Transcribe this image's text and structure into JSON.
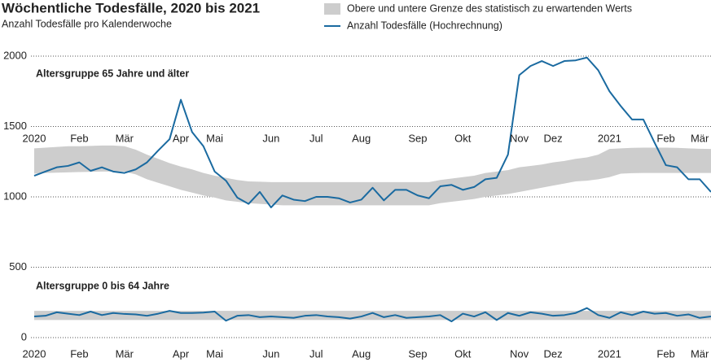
{
  "chart_data": {
    "type": "band-line",
    "title": "Wöchentliche Todesfälle, 2020 bis 2021",
    "subtitle": "Anzahl Todesfälle pro Kalenderwoche",
    "series": [
      {
        "name": "Obere und untere Grenze des statistisch zu erwartenden Werts",
        "color": "#cdcdcd"
      },
      {
        "name": "Anzahl Todesfälle (Hochrechnung)",
        "color": "#1a6aa0"
      }
    ],
    "categories": [
      "2020",
      null,
      null,
      null,
      "Feb",
      null,
      null,
      null,
      "Mär",
      null,
      null,
      null,
      null,
      "Apr",
      null,
      null,
      "Mai",
      null,
      null,
      null,
      null,
      "Jun",
      null,
      null,
      null,
      "Jul",
      null,
      null,
      null,
      "Aug",
      null,
      null,
      null,
      null,
      "Sep",
      null,
      null,
      null,
      "Okt",
      null,
      null,
      null,
      null,
      "Nov",
      null,
      null,
      "Dez",
      null,
      null,
      null,
      null,
      "2021",
      null,
      null,
      null,
      null,
      "Feb",
      null,
      null,
      "Mär",
      null
    ],
    "ylim": [
      0,
      2000
    ],
    "yticks": [
      0,
      500,
      1000,
      1500,
      2000
    ],
    "grid": true,
    "groups": [
      {
        "label": "Altersgruppe 65 Jahre und älter",
        "values": [
          1150,
          1180,
          1210,
          1220,
          1245,
          1185,
          1210,
          1180,
          1170,
          1195,
          1245,
          1330,
          1410,
          1690,
          1460,
          1360,
          1180,
          1115,
          995,
          950,
          1035,
          925,
          1010,
          980,
          970,
          1000,
          1000,
          990,
          960,
          980,
          1065,
          975,
          1050,
          1050,
          1010,
          990,
          1075,
          1085,
          1050,
          1070,
          1125,
          1135,
          1300,
          1865,
          1930,
          1965,
          1930,
          1965,
          1970,
          1990,
          1900,
          1750,
          1645,
          1550,
          1550,
          1385,
          1225,
          1210,
          1125,
          1125,
          1035
        ],
        "upper": [
          1345,
          1350,
          1355,
          1360,
          1360,
          1362,
          1365,
          1365,
          1360,
          1335,
          1300,
          1270,
          1240,
          1215,
          1195,
          1170,
          1150,
          1135,
          1120,
          1110,
          1108,
          1105,
          1105,
          1105,
          1105,
          1105,
          1105,
          1105,
          1105,
          1105,
          1105,
          1105,
          1105,
          1105,
          1105,
          1105,
          1120,
          1130,
          1140,
          1150,
          1170,
          1180,
          1190,
          1210,
          1220,
          1230,
          1245,
          1255,
          1270,
          1280,
          1300,
          1340,
          1345,
          1348,
          1350,
          1350,
          1350,
          1348,
          1345,
          1342,
          1340
        ],
        "lower": [
          1165,
          1170,
          1172,
          1174,
          1176,
          1178,
          1180,
          1180,
          1180,
          1160,
          1125,
          1100,
          1075,
          1050,
          1030,
          1010,
          995,
          975,
          965,
          955,
          950,
          945,
          940,
          940,
          940,
          940,
          940,
          940,
          940,
          940,
          940,
          940,
          940,
          940,
          940,
          940,
          955,
          965,
          975,
          985,
          1000,
          1010,
          1020,
          1035,
          1050,
          1065,
          1080,
          1095,
          1110,
          1115,
          1125,
          1140,
          1165,
          1168,
          1170,
          1170,
          1170,
          1170,
          1170,
          1170,
          1170
        ]
      },
      {
        "label": "Altersgruppe 0 bis 64 Jahre",
        "values": [
          150,
          155,
          180,
          170,
          160,
          185,
          160,
          175,
          168,
          165,
          155,
          170,
          190,
          175,
          175,
          178,
          185,
          120,
          155,
          160,
          145,
          150,
          145,
          140,
          155,
          160,
          150,
          145,
          135,
          150,
          175,
          145,
          160,
          140,
          145,
          150,
          160,
          115,
          170,
          150,
          180,
          125,
          175,
          155,
          180,
          170,
          155,
          160,
          175,
          210,
          160,
          140,
          180,
          160,
          185,
          170,
          175,
          155,
          165,
          140,
          150
        ],
        "upper": [
          190,
          190,
          190,
          190,
          190,
          190,
          190,
          190,
          190,
          190,
          190,
          190,
          190,
          190,
          190,
          190,
          190,
          190,
          190,
          190,
          190,
          190,
          190,
          190,
          190,
          190,
          190,
          190,
          190,
          190,
          190,
          190,
          190,
          190,
          190,
          190,
          190,
          190,
          190,
          190,
          190,
          190,
          190,
          190,
          190,
          190,
          190,
          190,
          190,
          190,
          190,
          190,
          190,
          190,
          190,
          190,
          190,
          190,
          190,
          190,
          190
        ],
        "lower": [
          125,
          125,
          125,
          125,
          125,
          125,
          125,
          125,
          125,
          125,
          125,
          125,
          125,
          125,
          125,
          125,
          125,
          125,
          125,
          125,
          125,
          125,
          125,
          125,
          125,
          125,
          125,
          125,
          125,
          125,
          125,
          125,
          125,
          125,
          125,
          125,
          125,
          125,
          125,
          125,
          125,
          125,
          125,
          125,
          125,
          125,
          125,
          125,
          125,
          125,
          125,
          125,
          125,
          125,
          125,
          125,
          125,
          125,
          125,
          125,
          125
        ]
      }
    ]
  }
}
